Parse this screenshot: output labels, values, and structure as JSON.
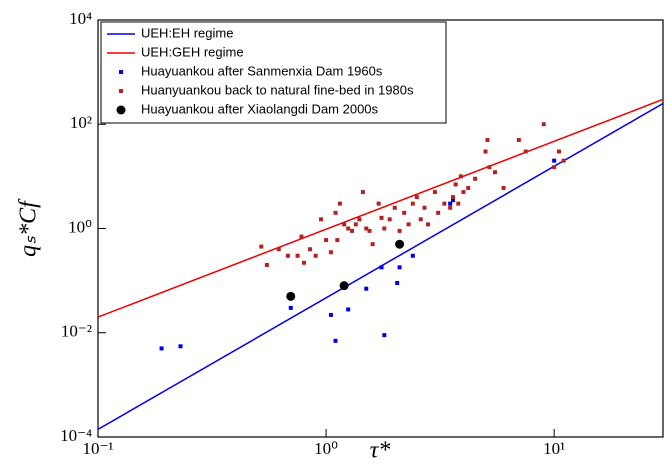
{
  "chart_data": {
    "type": "scatter",
    "xlabel": "τ*",
    "ylabel": "qₛ*Cf",
    "xscale": "log",
    "yscale": "log",
    "xlim": [
      0.1,
      30
    ],
    "ylim": [
      0.0001,
      10000
    ],
    "xticks": [
      {
        "value": 0.1,
        "label": "10⁻¹"
      },
      {
        "value": 1,
        "label": "10⁰"
      },
      {
        "value": 10,
        "label": "10¹"
      }
    ],
    "yticks": [
      {
        "value": 0.0001,
        "label": "10⁻⁴"
      },
      {
        "value": 0.01,
        "label": "10⁻²"
      },
      {
        "value": 1,
        "label": "10⁰"
      },
      {
        "value": 100,
        "label": "10²"
      },
      {
        "value": 10000,
        "label": "10⁴"
      }
    ],
    "legend": "upper left",
    "series": [
      {
        "name": "UEH:EH regime",
        "kind": "line",
        "color": "#0000ee",
        "x": [
          0.1,
          30
        ],
        "values": [
          0.00014,
          250
        ]
      },
      {
        "name": "UEH:GEH regime",
        "kind": "line",
        "color": "#ee0000",
        "x": [
          0.1,
          30
        ],
        "values": [
          0.02,
          300
        ]
      },
      {
        "name": "Huayuankou after Sanmenxia Dam 1960s",
        "kind": "scatter",
        "marker": "square",
        "color": "#0000ee",
        "x": [
          0.19,
          0.23,
          0.7,
          1.05,
          1.1,
          1.25,
          1.5,
          1.75,
          1.8,
          2.05,
          2.1,
          2.4,
          3.5,
          3.6,
          10
        ],
        "values": [
          0.005,
          0.0055,
          0.03,
          0.022,
          0.007,
          0.028,
          0.07,
          0.18,
          0.009,
          0.09,
          0.18,
          0.3,
          3,
          3.5,
          20
        ]
      },
      {
        "name": "Huanyuankou back to natural fine-bed in 1980s",
        "kind": "scatter",
        "marker": "square",
        "color": "#b22222",
        "x": [
          0.52,
          0.55,
          0.62,
          0.68,
          0.75,
          0.78,
          0.8,
          0.85,
          0.9,
          0.95,
          1.0,
          1.05,
          1.1,
          1.12,
          1.15,
          1.2,
          1.25,
          1.3,
          1.35,
          1.4,
          1.45,
          1.5,
          1.55,
          1.6,
          1.7,
          1.75,
          1.8,
          1.9,
          2.0,
          2.1,
          2.2,
          2.3,
          2.4,
          2.5,
          2.6,
          2.7,
          2.8,
          3.0,
          3.1,
          3.3,
          3.5,
          3.6,
          3.7,
          3.8,
          3.9,
          4.0,
          4.2,
          4.5,
          5.0,
          5.1,
          5.2,
          5.5,
          6,
          7,
          7.5,
          9,
          10,
          10.5,
          11
        ],
        "values": [
          0.45,
          0.2,
          0.4,
          0.3,
          0.3,
          0.7,
          0.22,
          0.4,
          0.3,
          1.5,
          0.6,
          0.35,
          2,
          0.6,
          3,
          1.2,
          1,
          0.9,
          1.2,
          1.5,
          5,
          1,
          0.9,
          0.5,
          3,
          1.6,
          1,
          1.5,
          2.5,
          0.9,
          2,
          1.2,
          3,
          4,
          1.5,
          2.5,
          1.2,
          5,
          2,
          3,
          2.5,
          4,
          7,
          3,
          10,
          5,
          6,
          9,
          30,
          50,
          15,
          12,
          6,
          50,
          30,
          100,
          15,
          30,
          20
        ]
      },
      {
        "name": "Huayuankou after Xiaolangdi Dam 2000s",
        "kind": "scatter",
        "marker": "circle",
        "color": "#000000",
        "x": [
          0.7,
          1.2,
          2.1
        ],
        "values": [
          0.05,
          0.08,
          0.5
        ]
      }
    ]
  }
}
